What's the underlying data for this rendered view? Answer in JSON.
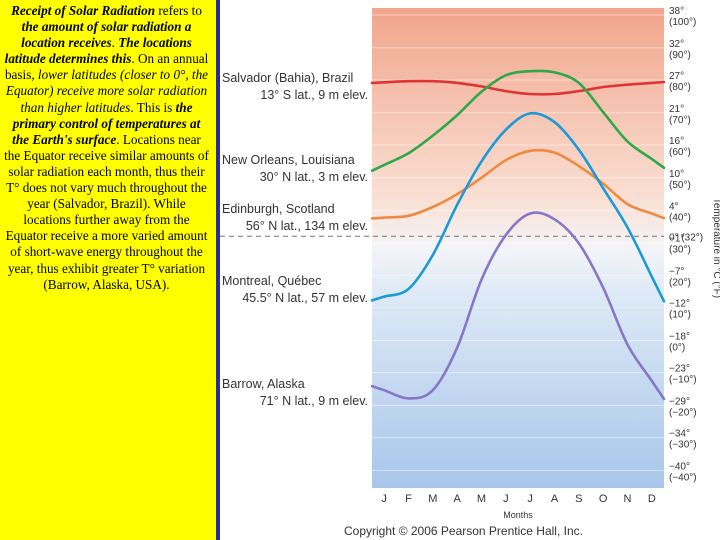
{
  "description_text": [
    {
      "t": "Receipt of Solar Radiation",
      "s": "bi"
    },
    {
      "t": " refers to ",
      "s": ""
    },
    {
      "t": "the amount of solar radiation a location receives",
      "s": "bi"
    },
    {
      "t": ". ",
      "s": ""
    },
    {
      "t": "The locations latitude determines this",
      "s": "bi"
    },
    {
      "t": ". On an annual basis, ",
      "s": ""
    },
    {
      "t": "lower latitudes (closer to 0°, the Equator) receive more solar radiation than higher latitudes",
      "s": "i"
    },
    {
      "t": ". This is ",
      "s": ""
    },
    {
      "t": "the primary control of temperatures at the Earth's surface",
      "s": "bi"
    },
    {
      "t": ". Locations near the Equator receive similar amounts of solar radiation each month, thus their T° does not vary much throughout the year (Salvador, Brazil). While locations further away from the Equator receive a more varied amount of short-wave energy throughout the year, thus exhibit greater T° variation (Barrow, Alaska, USA).",
      "s": ""
    }
  ],
  "chart_data": {
    "type": "line",
    "categories": [
      "J",
      "F",
      "M",
      "A",
      "M",
      "J",
      "J",
      "A",
      "S",
      "O",
      "N",
      "D"
    ],
    "xlabel": "Months",
    "ylabel": "Temperature in °C (°F)",
    "ylim": [
      -43,
      39
    ],
    "freezing_label": "0° (32°)",
    "y_ticks": [
      {
        "c": "38°",
        "f": "(100°)",
        "v": 37.8
      },
      {
        "c": "32°",
        "f": "(90°)",
        "v": 32.2
      },
      {
        "c": "27°",
        "f": "(80°)",
        "v": 26.7
      },
      {
        "c": "21°",
        "f": "(70°)",
        "v": 21.1
      },
      {
        "c": "16°",
        "f": "(60°)",
        "v": 15.6
      },
      {
        "c": "10°",
        "f": "(50°)",
        "v": 10
      },
      {
        "c": "4°",
        "f": "(40°)",
        "v": 4.4
      },
      {
        "c": "−1°",
        "f": "(30°)",
        "v": -1.1
      },
      {
        "c": "−7°",
        "f": "(20°)",
        "v": -6.7
      },
      {
        "c": "−12°",
        "f": "(10°)",
        "v": -12.2
      },
      {
        "c": "−18°",
        "f": "(0°)",
        "v": -17.8
      },
      {
        "c": "−23°",
        "f": "(−10°)",
        "v": -23.3
      },
      {
        "c": "−29°",
        "f": "(−20°)",
        "v": -28.9
      },
      {
        "c": "−34°",
        "f": "(−30°)",
        "v": -34.4
      },
      {
        "c": "−40°",
        "f": "(−40°)",
        "v": -40
      }
    ],
    "series": [
      {
        "name": "Salvador (Bahia), Brazil",
        "detail": "13° S lat., 9 m elev.",
        "color": "#e03434",
        "values": [
          26.3,
          26.5,
          26.5,
          26.2,
          25.6,
          24.8,
          24.3,
          24.3,
          24.8,
          25.5,
          25.9,
          26.2
        ]
      },
      {
        "name": "New Orleans, Louisiana",
        "detail": "30° N lat., 3 m elev.",
        "color": "#2fa84a",
        "values": [
          12.2,
          14.2,
          17.2,
          20.7,
          24.7,
          27.5,
          28.2,
          28.0,
          26.2,
          21.2,
          16.2,
          13.2
        ]
      },
      {
        "name": "Edinburgh, Scotland",
        "detail": "56° N lat., 134 m elev.",
        "color": "#f08a40",
        "values": [
          3.2,
          3.5,
          5.0,
          7.2,
          10.0,
          13.0,
          14.6,
          14.3,
          12.0,
          9.0,
          5.5,
          3.9
        ]
      },
      {
        "name": "Montreal, Québec",
        "detail": "45.5° N lat., 57 m elev.",
        "color": "#1a9ad6",
        "values": [
          -10.3,
          -9.0,
          -3.2,
          5.4,
          12.8,
          18.2,
          21.0,
          19.5,
          14.8,
          8.2,
          1.5,
          -6.9
        ]
      },
      {
        "name": "Barrow, Alaska",
        "detail": "71° N lat., 9 m elev.",
        "color": "#8877c8",
        "values": [
          -26.3,
          -27.7,
          -26.3,
          -19.0,
          -7.4,
          0.2,
          3.9,
          2.9,
          -1.2,
          -8.8,
          -18.5,
          -24.7
        ]
      }
    ]
  },
  "copyright": "Copyright © 2006 Pearson Prentice Hall, Inc."
}
